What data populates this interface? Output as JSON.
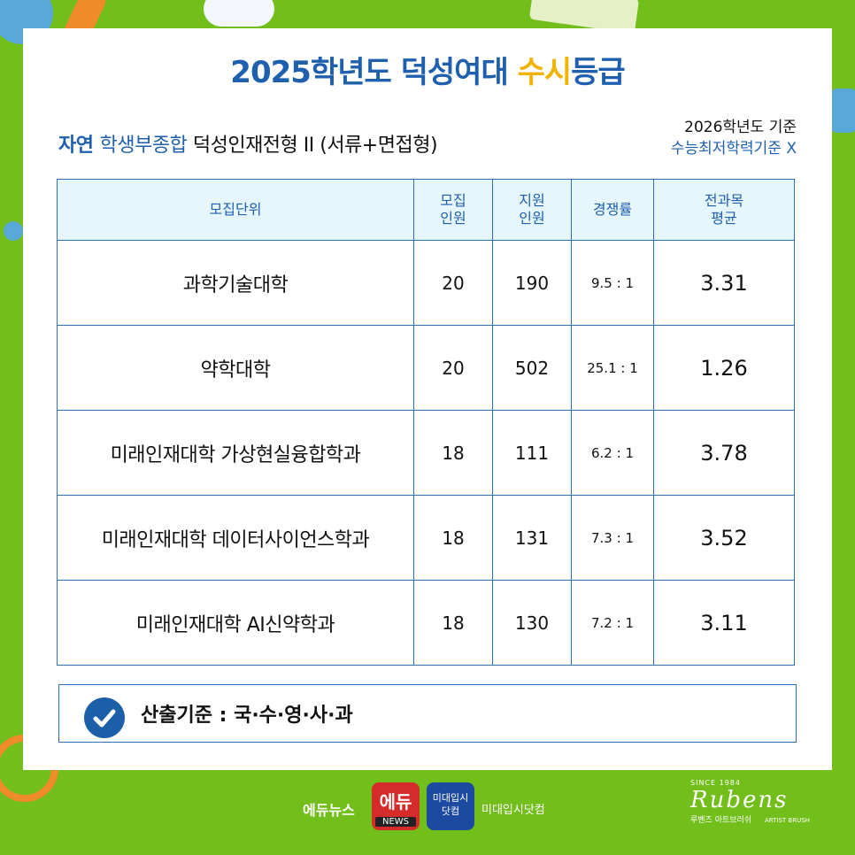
{
  "header": {
    "title_part1": "2025학년도 ",
    "title_part2": "덕성여대 ",
    "title_part3": "수시",
    "title_part4": "등급"
  },
  "subtitle": {
    "track": "자연 ",
    "type": "학생부종합 ",
    "program": "덕성인재전형 II (서류+면접형)"
  },
  "criteria": {
    "line1": "2026학년도 기준",
    "line2": "수능최저학력기준 X"
  },
  "table": {
    "headers": [
      "모집단위",
      "모집\n인원",
      "지원\n인원",
      "경쟁률",
      "전과목\n평균"
    ],
    "rows": [
      {
        "unit": "과학기술대학",
        "quota": "20",
        "applicants": "190",
        "ratio": "9.5 : 1",
        "avg": "3.31"
      },
      {
        "unit": "약학대학",
        "quota": "20",
        "applicants": "502",
        "ratio": "25.1 : 1",
        "avg": "1.26"
      },
      {
        "unit": "미래인재대학 가상현실융합학과",
        "quota": "18",
        "applicants": "111",
        "ratio": "6.2 : 1",
        "avg": "3.78"
      },
      {
        "unit": "미래인재대학 데이터사이언스학과",
        "quota": "18",
        "applicants": "131",
        "ratio": "7.3 : 1",
        "avg": "3.52"
      },
      {
        "unit": "미래인재대학 AI신약학과",
        "quota": "18",
        "applicants": "130",
        "ratio": "7.2 : 1",
        "avg": "3.11"
      }
    ]
  },
  "basis": {
    "text": "산출기준 : 국·수·영·사·과"
  },
  "footer": {
    "edunews": "에듀뉴스",
    "edu_logo_big": "에듀",
    "edu_logo_small": "NEWS",
    "mi_logo_line1": "미대입시",
    "mi_logo_line2": "닷컴",
    "mi_text": "미대입시닷컴",
    "rubens_since": "SINCE 1984",
    "rubens_name": "Rubens",
    "rubens_sub1": "루벤즈 아트브러쉬",
    "rubens_sub2": "ARTIST BRUSH"
  }
}
